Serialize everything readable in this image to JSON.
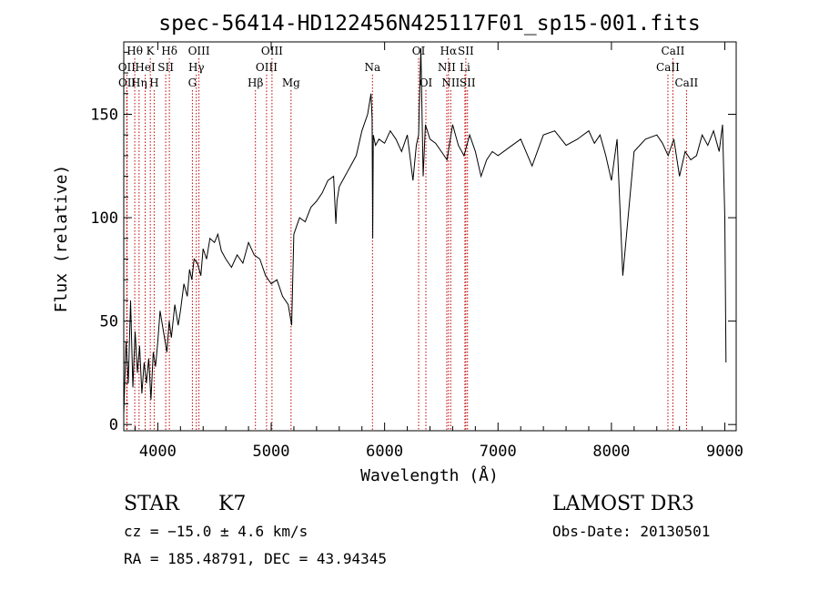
{
  "chart_data": {
    "type": "line",
    "title": "spec-56414-HD122456N425117F01_sp15-001.fits",
    "xlabel": "Wavelength (Å)",
    "ylabel": "Flux (relative)",
    "xlim": [
      3700,
      9100
    ],
    "ylim": [
      -3,
      185
    ],
    "x_ticks": [
      4000,
      5000,
      6000,
      7000,
      8000,
      9000
    ],
    "y_ticks": [
      0,
      50,
      100,
      150
    ],
    "grid": false,
    "series": [
      {
        "values_x": [
          3700,
          3720,
          3740,
          3760,
          3780,
          3800,
          3820,
          3840,
          3860,
          3880,
          3900,
          3920,
          3940,
          3960,
          3980,
          4000,
          4020,
          4050,
          4080,
          4100,
          4120,
          4150,
          4180,
          4200,
          4230,
          4260,
          4280,
          4300,
          4320,
          4350,
          4380,
          4400,
          4430,
          4460,
          4500,
          4530,
          4560,
          4600,
          4650,
          4700,
          4750,
          4800,
          4850,
          4900,
          4950,
          5000,
          5050,
          5100,
          5150,
          5180,
          5200,
          5250,
          5300,
          5350,
          5400,
          5450,
          5500,
          5550,
          5570,
          5580,
          5600,
          5650,
          5700,
          5750,
          5800,
          5850,
          5880,
          5890,
          5895,
          5900,
          5920,
          5950,
          6000,
          6050,
          6100,
          6150,
          6200,
          6250,
          6280,
          6300,
          6320,
          6340,
          6360,
          6400,
          6450,
          6500,
          6550,
          6600,
          6650,
          6700,
          6750,
          6800,
          6850,
          6900,
          6950,
          7000,
          7100,
          7200,
          7300,
          7400,
          7500,
          7600,
          7700,
          7800,
          7850,
          7900,
          7950,
          8000,
          8050,
          8100,
          8200,
          8300,
          8400,
          8450,
          8500,
          8550,
          8600,
          8650,
          8700,
          8750,
          8800,
          8850,
          8900,
          8950,
          8980,
          9000,
          9010
        ],
        "values_y": [
          5,
          40,
          20,
          60,
          18,
          45,
          25,
          38,
          15,
          30,
          20,
          32,
          12,
          35,
          28,
          40,
          55,
          45,
          35,
          50,
          42,
          58,
          48,
          55,
          68,
          62,
          75,
          70,
          80,
          78,
          72,
          85,
          80,
          90,
          88,
          92,
          84,
          80,
          76,
          82,
          78,
          88,
          82,
          80,
          72,
          68,
          70,
          62,
          58,
          48,
          92,
          100,
          98,
          105,
          108,
          112,
          118,
          120,
          97,
          108,
          115,
          120,
          125,
          130,
          142,
          150,
          160,
          148,
          90,
          140,
          135,
          138,
          136,
          142,
          138,
          132,
          140,
          118,
          135,
          140,
          182,
          120,
          145,
          138,
          136,
          132,
          128,
          145,
          135,
          130,
          140,
          132,
          120,
          128,
          132,
          130,
          134,
          138,
          125,
          140,
          142,
          135,
          138,
          142,
          136,
          140,
          130,
          118,
          138,
          72,
          132,
          138,
          140,
          136,
          130,
          138,
          120,
          132,
          128,
          130,
          140,
          135,
          142,
          132,
          145,
          100,
          30
        ]
      }
    ],
    "line_markers": [
      {
        "label": "Hθ",
        "x": 3797,
        "row": 0
      },
      {
        "label": "OII",
        "x": 3727,
        "row": 1
      },
      {
        "label": "OII",
        "x": 3729,
        "row": 2
      },
      {
        "label": "Hη",
        "x": 3835,
        "row": 2
      },
      {
        "label": "K",
        "x": 3934,
        "row": 0
      },
      {
        "label": "HeI",
        "x": 3889,
        "row": 1
      },
      {
        "label": "H",
        "x": 3968,
        "row": 2
      },
      {
        "label": "SII",
        "x": 4070,
        "row": 1
      },
      {
        "label": "Hδ",
        "x": 4102,
        "row": 0
      },
      {
        "label": "OIII",
        "x": 4363,
        "row": 0
      },
      {
        "label": "Hγ",
        "x": 4340,
        "row": 1
      },
      {
        "label": "G",
        "x": 4305,
        "row": 2
      },
      {
        "label": "Hβ",
        "x": 4861,
        "row": 2
      },
      {
        "label": "OIII",
        "x": 5007,
        "row": 0
      },
      {
        "label": "OIII",
        "x": 4959,
        "row": 1
      },
      {
        "label": "Mg",
        "x": 5175,
        "row": 2
      },
      {
        "label": "Na",
        "x": 5893,
        "row": 1
      },
      {
        "label": "OI",
        "x": 6300,
        "row": 0
      },
      {
        "label": "OI",
        "x": 6364,
        "row": 2
      },
      {
        "label": "Hα",
        "x": 6563,
        "row": 0
      },
      {
        "label": "NII",
        "x": 6548,
        "row": 1
      },
      {
        "label": "NII",
        "x": 6583,
        "row": 2
      },
      {
        "label": "SII",
        "x": 6716,
        "row": 0
      },
      {
        "label": "Li",
        "x": 6708,
        "row": 1
      },
      {
        "label": "SII",
        "x": 6731,
        "row": 2
      },
      {
        "label": "CaII",
        "x": 8542,
        "row": 0
      },
      {
        "label": "CaII",
        "x": 8498,
        "row": 1
      },
      {
        "label": "CaII",
        "x": 8662,
        "row": 2
      }
    ],
    "line_marker_color": "#c00000"
  },
  "info": {
    "class": "STAR",
    "subclass": "K7",
    "survey": "LAMOST DR3",
    "cz": "cz = −15.0 ± 4.6 km/s",
    "obs_date": "Obs-Date: 20130501",
    "coords": "RA = 185.48791, DEC =  43.94345"
  }
}
